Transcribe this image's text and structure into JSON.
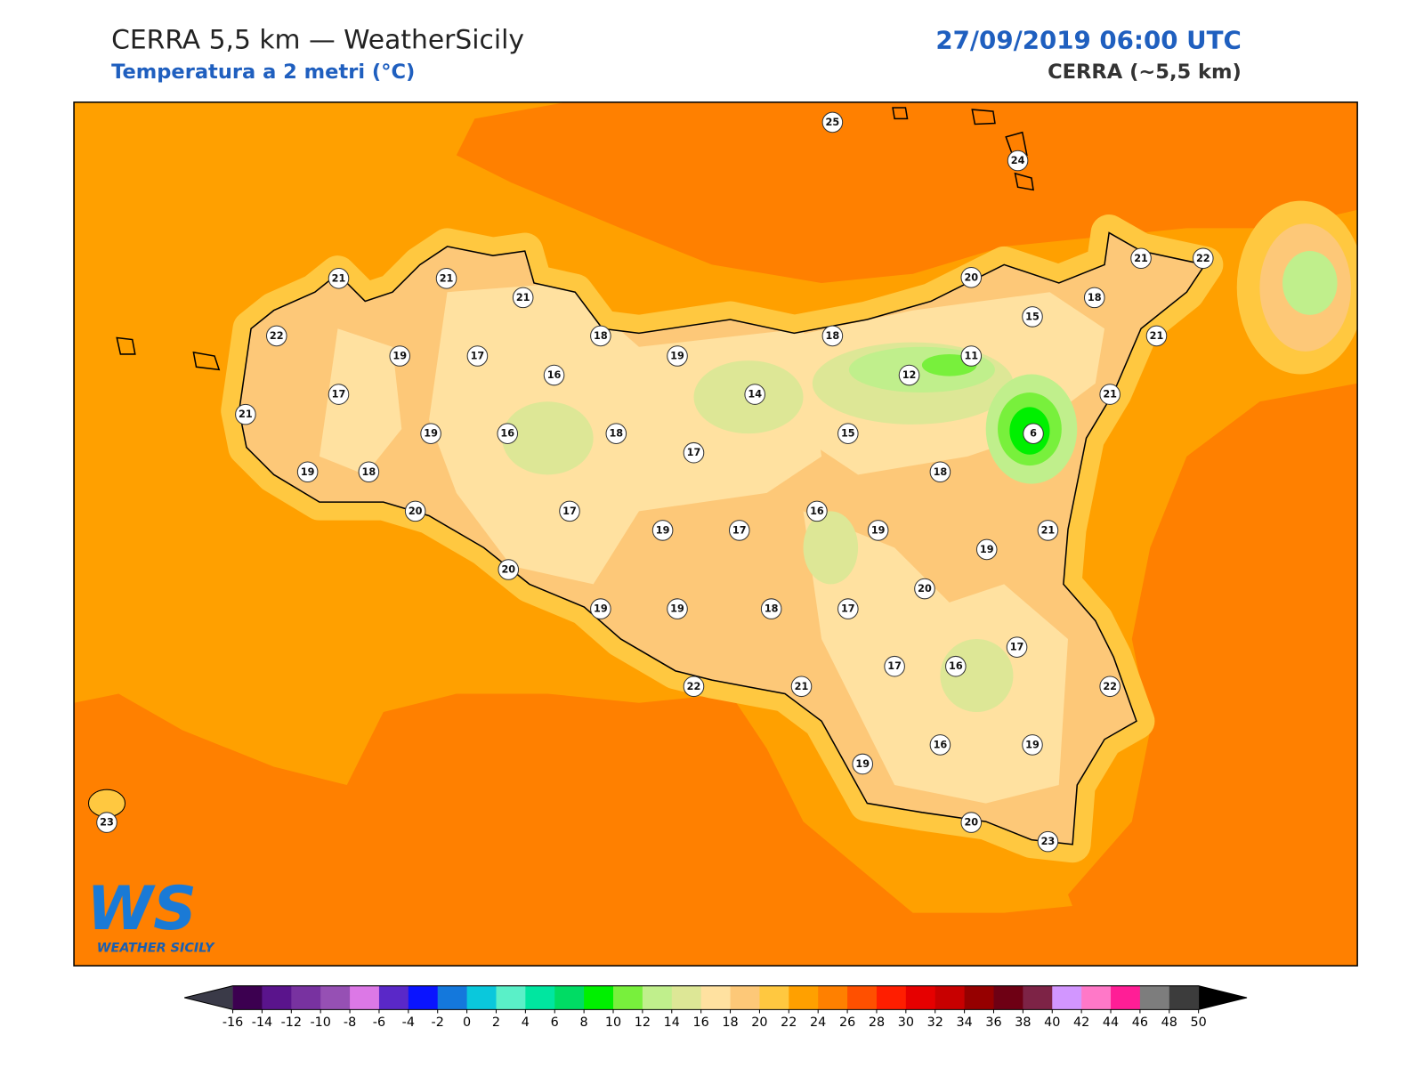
{
  "header": {
    "title": "CERRA 5,5 km — WeatherSicily",
    "subtitle": "Temperatura a 2 metri (°C)",
    "datetime": "27/09/2019 06:00 UTC",
    "model": "CERRA (~5,5 km)"
  },
  "stations": [
    25,
    24,
    21,
    21,
    21,
    20,
    21,
    22,
    18,
    22,
    19,
    17,
    18,
    19,
    18,
    15,
    21,
    16,
    12,
    11,
    14,
    17,
    21,
    21,
    19,
    16,
    18,
    15,
    6,
    17,
    19,
    18,
    18,
    20,
    17,
    16,
    19,
    17,
    19,
    21,
    19,
    20,
    20,
    19,
    19,
    18,
    17,
    17,
    17,
    16,
    22,
    21,
    22,
    16,
    19,
    19,
    20,
    23,
    23
  ],
  "colorbar": {
    "ticks": [
      -16,
      -14,
      -12,
      -10,
      -8,
      -6,
      -4,
      -2,
      0,
      2,
      4,
      6,
      8,
      10,
      12,
      14,
      16,
      18,
      20,
      22,
      24,
      26,
      28,
      30,
      32,
      34,
      36,
      38,
      40,
      42,
      44,
      46,
      48,
      50
    ],
    "colors": [
      "#3c0050",
      "#5a148c",
      "#7832a0",
      "#9650b4",
      "#dc78e6",
      "#5a28c8",
      "#0a14ff",
      "#1478dc",
      "#0ac8dc",
      "#5af0c8",
      "#00e6a0",
      "#00dc64",
      "#00f000",
      "#78f03c",
      "#c0ef8c",
      "#dde796",
      "#ffe1a0",
      "#fdc878",
      "#ffc840",
      "#ffa000",
      "#ff8000",
      "#ff5000",
      "#ff1e00",
      "#e60000",
      "#c80000",
      "#960000",
      "#6e0014",
      "#7d2346",
      "#d296ff",
      "#ff78c8",
      "#ff1e96",
      "#7d7d7d",
      "#3c3c3c"
    ],
    "under": "#3a3a48",
    "over": "#000000"
  },
  "logo": {
    "mark": "WS",
    "text": "WEATHER SICILY"
  }
}
